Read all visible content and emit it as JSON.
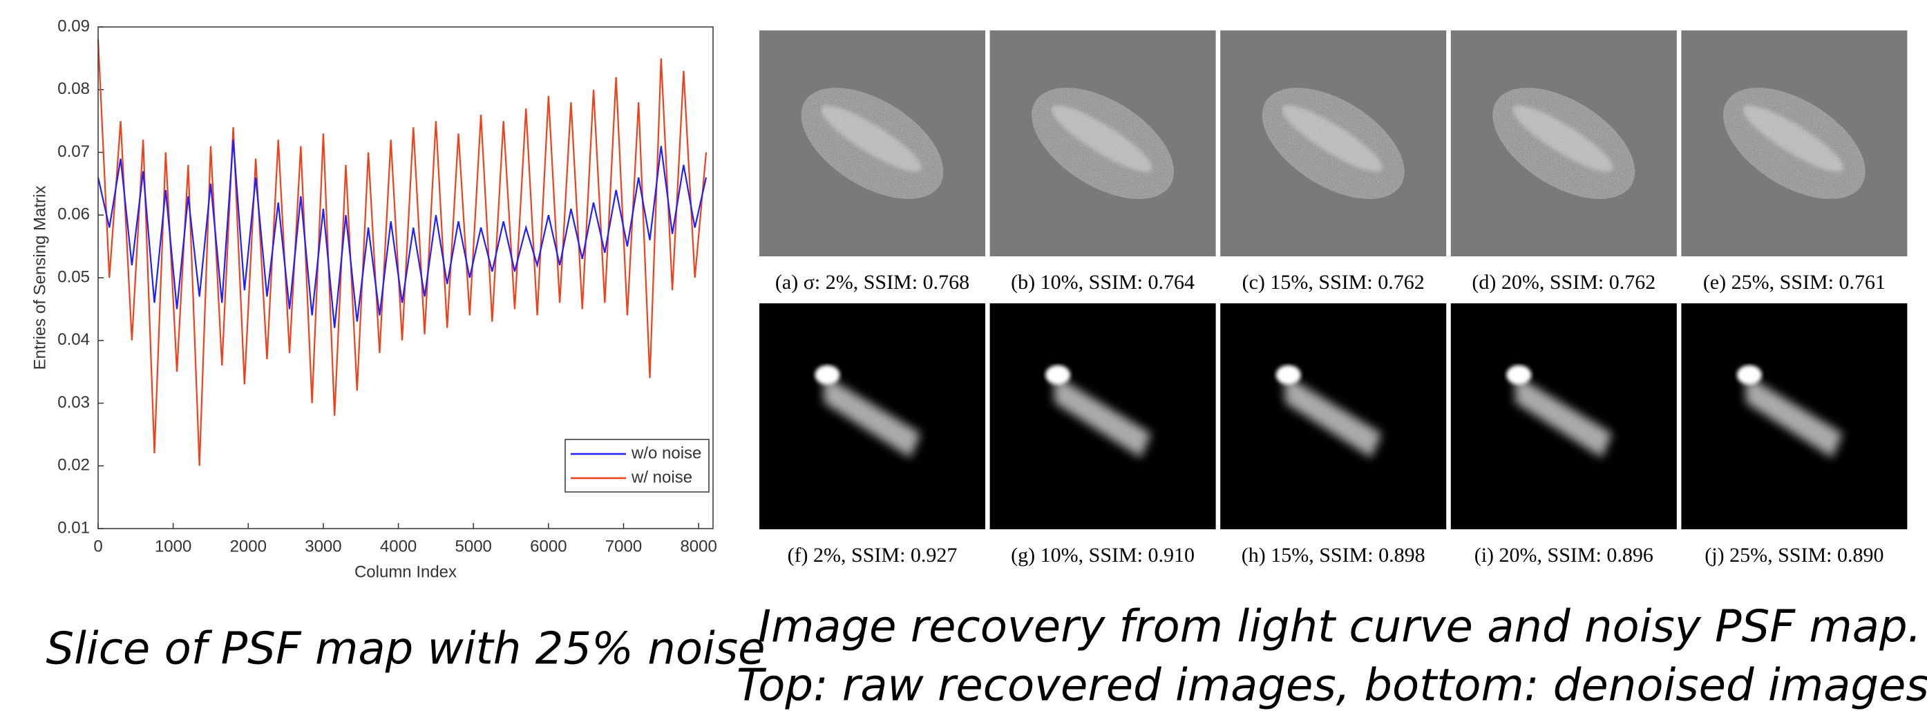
{
  "chart_data": {
    "type": "line",
    "x_label": "Column Index",
    "y_label": "Entries of Sensing Matrix",
    "x": [
      0,
      150,
      300,
      450,
      600,
      750,
      900,
      1050,
      1200,
      1350,
      1500,
      1650,
      1800,
      1950,
      2100,
      2250,
      2400,
      2550,
      2700,
      2850,
      3000,
      3150,
      3300,
      3450,
      3600,
      3750,
      3900,
      4050,
      4200,
      4350,
      4500,
      4650,
      4800,
      4950,
      5100,
      5250,
      5400,
      5550,
      5700,
      5850,
      6000,
      6150,
      6300,
      6450,
      6600,
      6750,
      6900,
      7050,
      7200,
      7350,
      7500,
      7650,
      7800,
      7950,
      8100
    ],
    "series": [
      {
        "name": "w/o noise",
        "color": "#1f1fff",
        "values": [
          0.066,
          0.058,
          0.069,
          0.052,
          0.067,
          0.046,
          0.064,
          0.045,
          0.063,
          0.047,
          0.065,
          0.046,
          0.072,
          0.048,
          0.066,
          0.047,
          0.062,
          0.045,
          0.063,
          0.044,
          0.061,
          0.042,
          0.06,
          0.043,
          0.058,
          0.044,
          0.059,
          0.046,
          0.058,
          0.047,
          0.06,
          0.049,
          0.059,
          0.05,
          0.058,
          0.051,
          0.059,
          0.051,
          0.058,
          0.052,
          0.06,
          0.052,
          0.061,
          0.053,
          0.062,
          0.054,
          0.064,
          0.055,
          0.066,
          0.056,
          0.071,
          0.057,
          0.068,
          0.058,
          0.066
        ]
      },
      {
        "name": "w/ noise",
        "color": "#f0401a",
        "values": [
          0.088,
          0.05,
          0.075,
          0.04,
          0.072,
          0.022,
          0.07,
          0.035,
          0.068,
          0.02,
          0.071,
          0.036,
          0.074,
          0.033,
          0.069,
          0.037,
          0.072,
          0.038,
          0.071,
          0.03,
          0.073,
          0.028,
          0.068,
          0.032,
          0.07,
          0.038,
          0.072,
          0.04,
          0.074,
          0.041,
          0.075,
          0.042,
          0.073,
          0.044,
          0.076,
          0.043,
          0.075,
          0.045,
          0.077,
          0.044,
          0.079,
          0.046,
          0.078,
          0.045,
          0.08,
          0.046,
          0.082,
          0.044,
          0.078,
          0.034,
          0.085,
          0.048,
          0.083,
          0.05,
          0.07
        ]
      }
    ],
    "xlim": [
      0,
      8192
    ],
    "xticks": [
      0,
      1000,
      2000,
      3000,
      4000,
      5000,
      6000,
      7000,
      8000
    ],
    "ylim": [
      0.01,
      0.09
    ],
    "yticks": [
      0.01,
      0.02,
      0.03,
      0.04,
      0.05,
      0.06,
      0.07,
      0.08,
      0.09
    ],
    "grid": false,
    "legend": "lower right"
  },
  "panels": {
    "top_captions": [
      "(a) σ: 2%, SSIM: 0.768",
      "(b) 10%, SSIM: 0.764",
      "(c) 15%, SSIM: 0.762",
      "(d) 20%, SSIM: 0.762",
      "(e) 25%, SSIM: 0.761"
    ],
    "bottom_captions": [
      "(f) 2%, SSIM: 0.927",
      "(g) 10%, SSIM: 0.910",
      "(h) 15%, SSIM: 0.898",
      "(i) 20%, SSIM: 0.896",
      "(j) 25%, SSIM: 0.890"
    ]
  },
  "captions": {
    "left": "Slice of PSF map with 25% noise",
    "right": [
      "Image recovery from light curve and noisy PSF map.",
      "Top: raw recovered images, bottom: denoised images."
    ]
  }
}
